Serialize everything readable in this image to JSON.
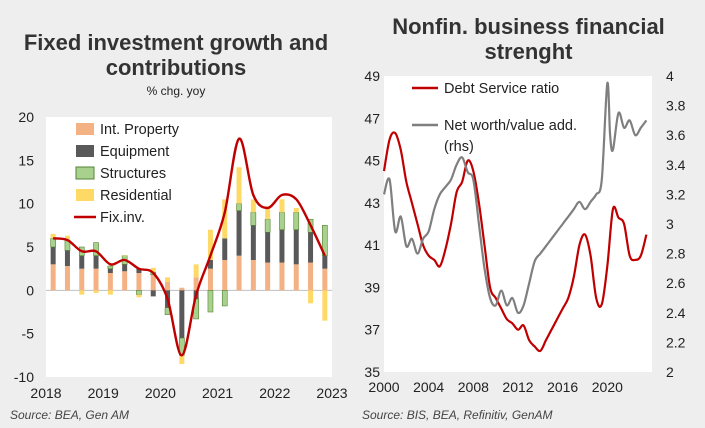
{
  "chart_data": [
    {
      "type": "bar",
      "title": "Fixed investment growth and contributions",
      "subtitle": "% chg. yoy",
      "source": "Source: BEA, Gen AM",
      "ylim": [
        -10,
        20
      ],
      "yticks": [
        -10,
        -5,
        0,
        5,
        10,
        15,
        20
      ],
      "xlim": [
        2018.0,
        2023.0
      ],
      "xticks": [
        2018,
        2019,
        2020,
        2021,
        2022,
        2023
      ],
      "grid": false,
      "legend_position": "top-left",
      "x": [
        2018.125,
        2018.375,
        2018.625,
        2018.875,
        2019.125,
        2019.375,
        2019.625,
        2019.875,
        2020.125,
        2020.375,
        2020.625,
        2020.875,
        2021.125,
        2021.375,
        2021.625,
        2021.875,
        2022.125,
        2022.375,
        2022.625,
        2022.875
      ],
      "series": [
        {
          "name": "Int. Property",
          "color": "#f4b183",
          "values": [
            3.0,
            2.8,
            2.5,
            2.5,
            2.0,
            2.2,
            2.0,
            1.8,
            1.0,
            0.3,
            1.5,
            2.5,
            3.5,
            4.0,
            3.5,
            3.2,
            3.2,
            3.0,
            3.2,
            2.5
          ]
        },
        {
          "name": "Equipment",
          "color": "#595959",
          "values": [
            2.0,
            1.8,
            1.5,
            1.5,
            0.5,
            0.8,
            0.5,
            -0.7,
            -2.0,
            -5.5,
            -1.0,
            1.0,
            2.5,
            5.2,
            4.0,
            3.5,
            3.8,
            4.0,
            3.5,
            1.5
          ]
        },
        {
          "name": "Structures",
          "color": "#a9d18e",
          "values": [
            1.0,
            1.2,
            1.0,
            1.5,
            0.3,
            1.0,
            -0.5,
            0.3,
            -0.8,
            -2.0,
            -2.3,
            -2.5,
            -1.8,
            0.8,
            1.5,
            1.5,
            2.0,
            2.0,
            1.5,
            3.5
          ]
        },
        {
          "name": "Residential",
          "color": "#ffd966",
          "values": [
            0.5,
            0.5,
            -0.5,
            -0.3,
            -0.5,
            0.0,
            -0.3,
            0.5,
            0.5,
            -1.0,
            1.5,
            3.5,
            4.5,
            4.2,
            1.5,
            1.5,
            1.5,
            0.5,
            -1.5,
            -3.5
          ]
        },
        {
          "name": "Fix.inv.",
          "color": "#c00000",
          "type": "line",
          "values": [
            6.0,
            5.8,
            4.5,
            4.5,
            3.0,
            3.5,
            2.5,
            2.0,
            -1.0,
            -7.5,
            -0.5,
            4.0,
            9.0,
            17.5,
            11.0,
            9.5,
            11.0,
            10.5,
            7.5,
            4.0
          ]
        }
      ]
    },
    {
      "type": "line",
      "title": "Nonfin. business financial strenght",
      "source": "Source: BIS, BEA, Refinitiv, GenAM",
      "xlim": [
        2000,
        2024
      ],
      "xticks": [
        2000,
        2004,
        2008,
        2012,
        2016,
        2020
      ],
      "ylim": [
        35,
        49
      ],
      "yticks": [
        35,
        37,
        39,
        41,
        43,
        45,
        47,
        49
      ],
      "y2lim": [
        2.0,
        4.0
      ],
      "y2ticks": [
        2,
        2.2,
        2.4,
        2.6,
        2.8,
        3,
        3.2,
        3.4,
        3.6,
        3.8,
        4
      ],
      "grid": false,
      "legend_position": "top-left",
      "series": [
        {
          "name": "Debt Service ratio",
          "axis": "left",
          "color": "#c00000",
          "x": [
            2000.0,
            2000.5,
            2001.0,
            2001.5,
            2002.0,
            2002.5,
            2003.0,
            2003.5,
            2004.0,
            2004.5,
            2005.0,
            2005.5,
            2006.0,
            2006.5,
            2007.0,
            2007.5,
            2008.0,
            2008.5,
            2009.0,
            2009.5,
            2010.0,
            2010.5,
            2011.0,
            2011.5,
            2012.0,
            2012.5,
            2013.0,
            2013.5,
            2014.0,
            2014.5,
            2015.0,
            2015.5,
            2016.0,
            2016.5,
            2017.0,
            2017.5,
            2018.0,
            2018.5,
            2019.0,
            2019.5,
            2020.0,
            2020.5,
            2021.0,
            2021.5,
            2022.0,
            2022.5,
            2023.0,
            2023.5
          ],
          "y": [
            44.5,
            46.0,
            46.3,
            45.5,
            44.0,
            43.0,
            42.0,
            41.0,
            40.5,
            40.3,
            40.0,
            40.8,
            42.0,
            43.5,
            44.0,
            45.0,
            44.5,
            43.0,
            41.0,
            39.0,
            38.5,
            38.0,
            37.5,
            37.3,
            37.0,
            37.2,
            36.5,
            36.2,
            36.0,
            36.5,
            37.0,
            37.5,
            38.0,
            38.5,
            39.5,
            41.0,
            41.5,
            40.5,
            38.5,
            38.2,
            40.0,
            42.7,
            42.3,
            42.0,
            40.5,
            40.3,
            40.5,
            41.5
          ]
        },
        {
          "name": "Net worth/value add. (rhs)",
          "axis": "right",
          "color": "#7f7f7f",
          "x": [
            2000.0,
            2000.5,
            2001.0,
            2001.5,
            2002.0,
            2002.5,
            2003.0,
            2003.5,
            2004.0,
            2004.5,
            2005.0,
            2005.5,
            2006.0,
            2006.5,
            2007.0,
            2007.5,
            2008.0,
            2008.5,
            2009.0,
            2009.5,
            2010.0,
            2010.5,
            2011.0,
            2011.5,
            2012.0,
            2012.5,
            2013.0,
            2013.5,
            2014.0,
            2014.5,
            2015.0,
            2015.5,
            2016.0,
            2016.5,
            2017.0,
            2017.5,
            2018.0,
            2018.5,
            2019.0,
            2019.5,
            2020.0,
            2020.25,
            2020.5,
            2021.0,
            2021.5,
            2022.0,
            2022.5,
            2023.0,
            2023.5
          ],
          "y": [
            3.2,
            3.3,
            2.95,
            3.05,
            2.85,
            2.9,
            2.8,
            2.9,
            2.95,
            3.1,
            3.2,
            3.25,
            3.3,
            3.4,
            3.45,
            3.35,
            3.3,
            3.0,
            2.7,
            2.5,
            2.45,
            2.55,
            2.45,
            2.5,
            2.4,
            2.45,
            2.6,
            2.75,
            2.8,
            2.85,
            2.9,
            2.95,
            3.0,
            3.05,
            3.1,
            3.15,
            3.1,
            3.15,
            3.2,
            3.3,
            3.95,
            3.6,
            3.5,
            3.75,
            3.65,
            3.7,
            3.6,
            3.65,
            3.7
          ]
        }
      ]
    }
  ]
}
